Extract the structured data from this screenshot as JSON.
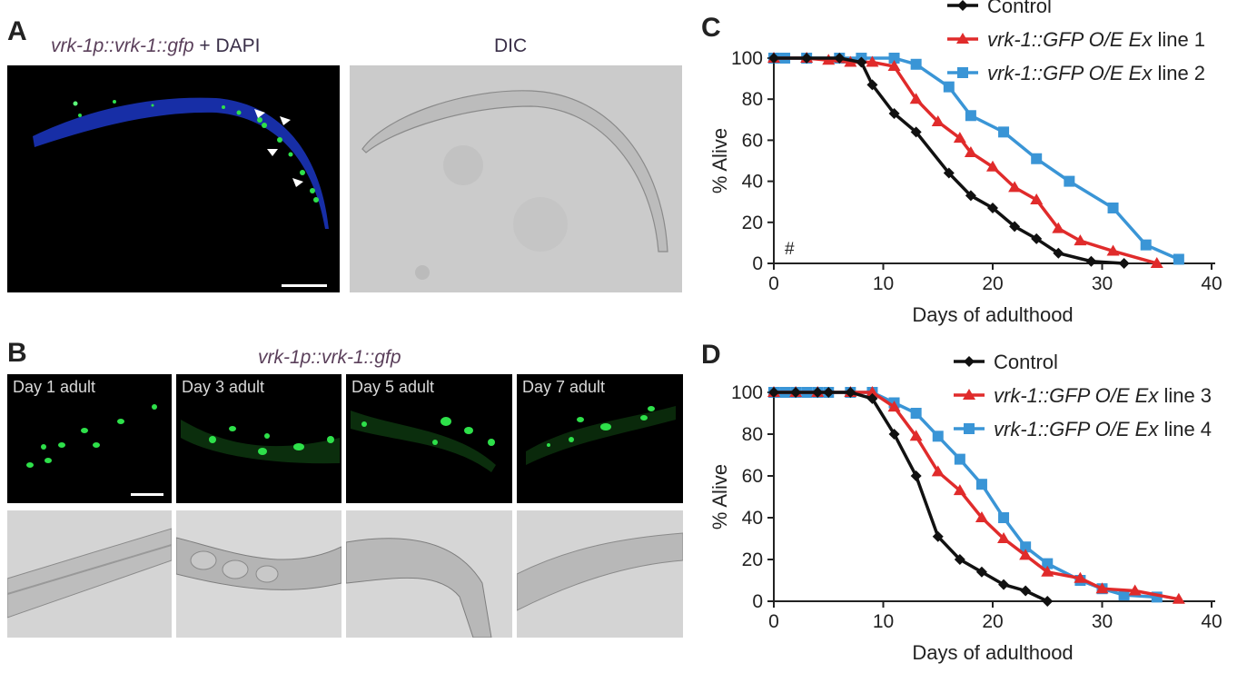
{
  "panel_a": {
    "letter": "A",
    "title_italic": "vrk-1p::vrk-1::gfp",
    "title_rest": " + DAPI",
    "dic_label": "DIC"
  },
  "panel_b": {
    "letter": "B",
    "title": "vrk-1p::vrk-1::gfp",
    "days": [
      "Day 1 adult",
      "Day 3 adult",
      "Day 5 adult",
      "Day 7 adult"
    ]
  },
  "panel_c": {
    "letter": "C",
    "annotation": "#"
  },
  "panel_d": {
    "letter": "D"
  },
  "colors": {
    "control": "#111111",
    "line_red": "#e02b2b",
    "line_blue": "#3a95d6",
    "gfp": "#2ee04a",
    "dapi": "#1a33b8"
  },
  "chart_data": [
    {
      "type": "line",
      "panel": "C",
      "xlabel": "Days of adulthood",
      "ylabel": "% Alive",
      "xlim": [
        0,
        40
      ],
      "ylim": [
        0,
        100
      ],
      "xticks": [
        0,
        10,
        20,
        30,
        40
      ],
      "yticks": [
        0,
        20,
        40,
        60,
        80,
        100
      ],
      "legend_position": "top-right",
      "series": [
        {
          "name": "Control",
          "legend_italic": "",
          "legend_rest": "Control",
          "marker": "diamond",
          "color": "#111111",
          "x": [
            0,
            3,
            6,
            8,
            9,
            11,
            13,
            16,
            18,
            20,
            22,
            24,
            26,
            29,
            32
          ],
          "y": [
            100,
            100,
            100,
            98,
            87,
            73,
            64,
            44,
            33,
            27,
            18,
            12,
            5,
            1,
            0
          ]
        },
        {
          "name": "vrk-1::GFP O/E Ex line 1",
          "legend_italic": "vrk-1::GFP O/E Ex",
          "legend_rest": " line 1",
          "marker": "triangle",
          "color": "#e02b2b",
          "x": [
            0,
            3,
            5,
            7,
            9,
            11,
            13,
            15,
            17,
            18,
            20,
            22,
            24,
            26,
            28,
            31,
            35
          ],
          "y": [
            100,
            100,
            99,
            98,
            98,
            96,
            80,
            69,
            61,
            54,
            47,
            37,
            31,
            17,
            11,
            6,
            0
          ]
        },
        {
          "name": "vrk-1::GFP O/E Ex line 2",
          "legend_italic": "vrk-1::GFP O/E Ex",
          "legend_rest": " line 2",
          "marker": "square",
          "color": "#3a95d6",
          "x": [
            0,
            1,
            3,
            6,
            8,
            11,
            13,
            16,
            18,
            21,
            24,
            27,
            31,
            34,
            37
          ],
          "y": [
            100,
            100,
            100,
            100,
            100,
            100,
            97,
            86,
            72,
            64,
            51,
            40,
            27,
            9,
            2
          ]
        }
      ]
    },
    {
      "type": "line",
      "panel": "D",
      "xlabel": "Days of adulthood",
      "ylabel": "% Alive",
      "xlim": [
        0,
        40
      ],
      "ylim": [
        0,
        100
      ],
      "xticks": [
        0,
        10,
        20,
        30,
        40
      ],
      "yticks": [
        0,
        20,
        40,
        60,
        80,
        100
      ],
      "legend_position": "top-right",
      "series": [
        {
          "name": "Control",
          "legend_italic": "",
          "legend_rest": "Control",
          "marker": "diamond",
          "color": "#111111",
          "x": [
            0,
            2,
            4,
            5,
            7,
            9,
            11,
            13,
            15,
            17,
            19,
            21,
            23,
            25
          ],
          "y": [
            100,
            100,
            100,
            100,
            100,
            97,
            80,
            60,
            31,
            20,
            14,
            8,
            5,
            0
          ]
        },
        {
          "name": "vrk-1::GFP O/E Ex line 3",
          "legend_italic": "vrk-1::GFP O/E Ex",
          "legend_rest": " line 3",
          "marker": "triangle",
          "color": "#e02b2b",
          "x": [
            0,
            2,
            4,
            7,
            9,
            11,
            13,
            15,
            17,
            19,
            21,
            23,
            25,
            28,
            30,
            33,
            37
          ],
          "y": [
            100,
            100,
            100,
            100,
            100,
            93,
            79,
            62,
            53,
            40,
            30,
            22,
            14,
            11,
            6,
            5,
            1
          ]
        },
        {
          "name": "vrk-1::GFP O/E Ex line 4",
          "legend_italic": "vrk-1::GFP O/E Ex",
          "legend_rest": " line 4",
          "marker": "square",
          "color": "#3a95d6",
          "x": [
            0,
            1,
            2,
            3,
            4,
            5,
            7,
            9,
            11,
            13,
            15,
            17,
            19,
            21,
            23,
            25,
            28,
            30,
            32,
            35
          ],
          "y": [
            100,
            100,
            100,
            100,
            100,
            100,
            100,
            100,
            95,
            90,
            79,
            68,
            56,
            40,
            26,
            18,
            10,
            6,
            3,
            2
          ]
        }
      ]
    }
  ]
}
